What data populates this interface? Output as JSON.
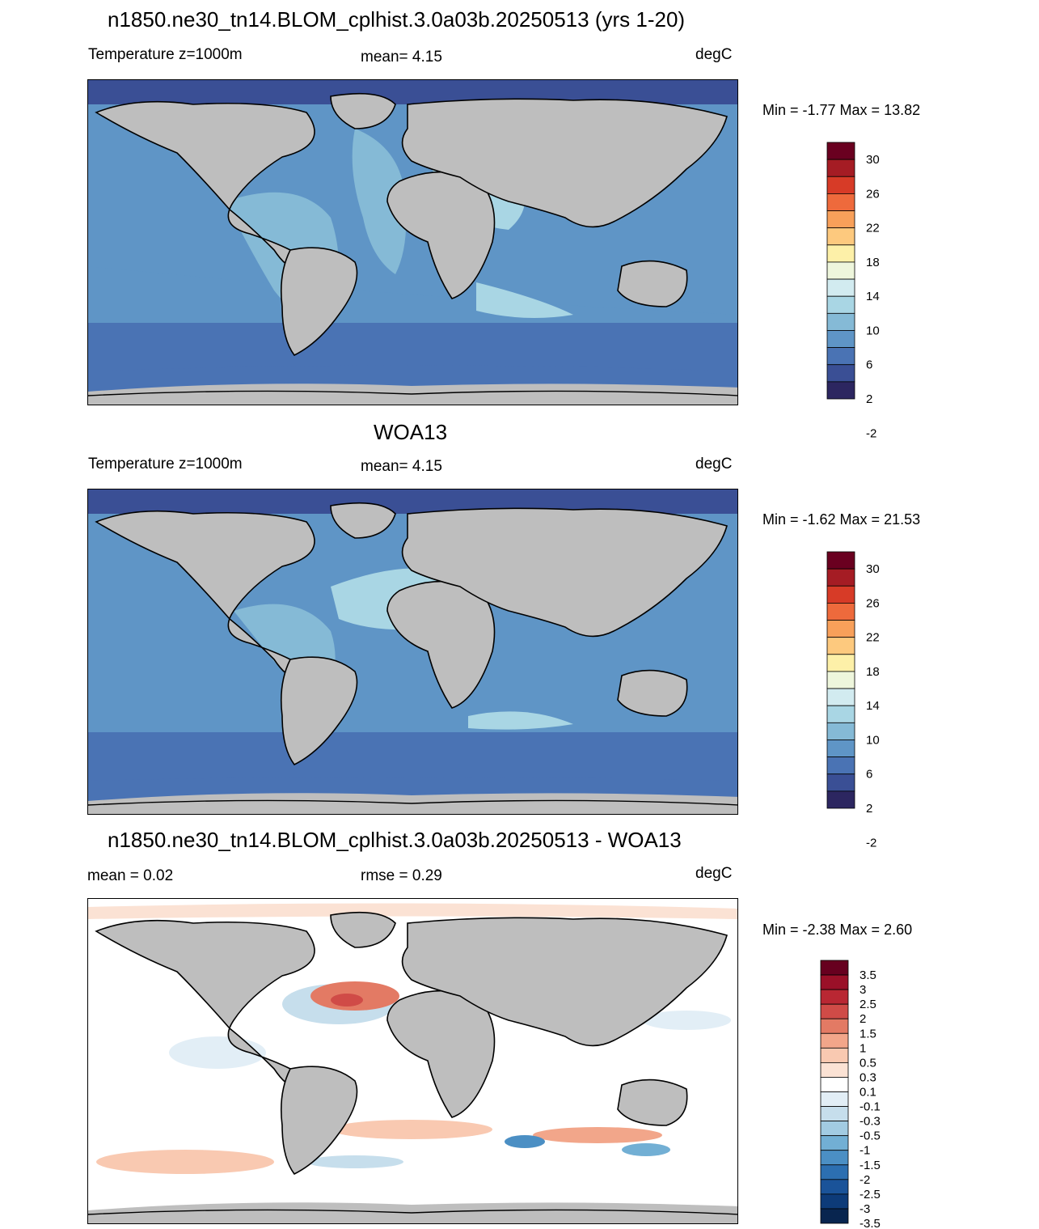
{
  "panels": [
    {
      "id": "model",
      "title": "n1850.ne30_tn14.BLOM_cplhist.3.0a03b.20250513 (yrs 1-20)",
      "left_label": "Temperature z=1000m",
      "center_label": "mean=   4.15",
      "right_label": "degC",
      "minmax": "Min =  -1.77 Max =  13.82",
      "colorbar_labels": [
        "30",
        "26",
        "22",
        "18",
        "14",
        "10",
        "6",
        "2",
        "-2"
      ]
    },
    {
      "id": "obs",
      "title": "WOA13",
      "left_label": "Temperature z=1000m",
      "center_label": "mean=   4.15",
      "right_label": "degC",
      "minmax": "Min =  -1.62 Max =  21.53",
      "colorbar_labels": [
        "30",
        "26",
        "22",
        "18",
        "14",
        "10",
        "6",
        "2",
        "-2"
      ]
    },
    {
      "id": "diff",
      "title": "n1850.ne30_tn14.BLOM_cplhist.3.0a03b.20250513 - WOA13",
      "left_label": "mean =   0.02",
      "center_label": "rmse =   0.29",
      "right_label": "degC",
      "minmax": "Min =  -2.38 Max =   2.60",
      "colorbar_labels": [
        "3.5",
        "3",
        "2.5",
        "2",
        "1.5",
        "1",
        "0.5",
        "0.3",
        "0.1",
        "-0.1",
        "-0.3",
        "-0.5",
        "-1",
        "-1.5",
        "-2",
        "-2.5",
        "-3",
        "-3.5"
      ]
    }
  ],
  "colors": {
    "land": "#bebebe",
    "temp_scale": [
      "#6a0020",
      "#a51c24",
      "#d73b27",
      "#ee6a3c",
      "#f8a05a",
      "#fdc97e",
      "#fdf0a8",
      "#eef6dc",
      "#d2ebf0",
      "#a9d6e4",
      "#85bad6",
      "#5f95c6",
      "#4a73b4",
      "#3a4f95",
      "#2c2660"
    ],
    "diff_scale": [
      "#67001f",
      "#9a1028",
      "#b92733",
      "#d04b47",
      "#e37a64",
      "#f2a68a",
      "#f9c9b1",
      "#fbe2d4",
      "#ffffff",
      "#e2eef6",
      "#c6deec",
      "#a2cbe2",
      "#72afd4",
      "#4b8fc4",
      "#2c6fb1",
      "#1a5399",
      "#0d3b79",
      "#08254f"
    ]
  }
}
